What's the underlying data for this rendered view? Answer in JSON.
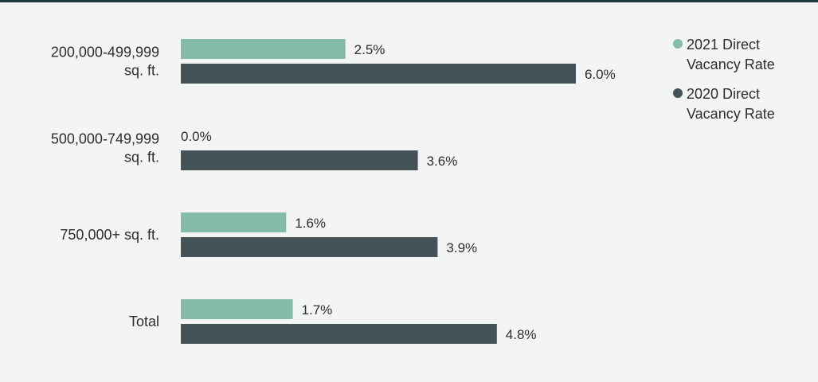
{
  "chart_data": {
    "type": "bar",
    "orientation": "horizontal",
    "categories": [
      "200,000-499,999\nsq. ft.",
      "500,000-749,999\nsq. ft.",
      "750,000+ sq. ft.",
      "Total"
    ],
    "series": [
      {
        "name": "2021 Direct Vacancy Rate",
        "legend_label": "2021 Direct\nVacancy Rate",
        "color": "#84bbab",
        "values": [
          2.5,
          0.0,
          1.6,
          1.7
        ],
        "labels": [
          "2.5%",
          "0.0%",
          "1.6%",
          "1.7%"
        ]
      },
      {
        "name": "2020 Direct Vacancy Rate",
        "legend_label": "2020 Direct\nVacancy Rate",
        "color": "#435357",
        "values": [
          6.0,
          3.6,
          3.9,
          4.8
        ],
        "labels": [
          "6.0%",
          "3.6%",
          "3.9%",
          "4.8%"
        ]
      }
    ],
    "xlim": [
      0,
      6.0
    ],
    "grid": false,
    "legend_position": "top-right",
    "title": "",
    "xlabel": "",
    "ylabel": ""
  },
  "colors": {
    "background": "#f3f5f4",
    "top_rule": "#1f3a3a"
  }
}
